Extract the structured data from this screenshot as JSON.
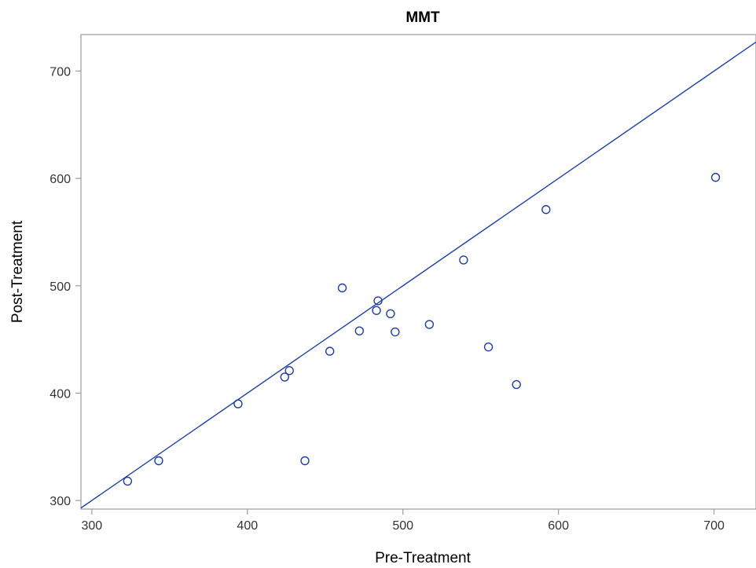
{
  "chart_data": {
    "type": "scatter",
    "title": "MMT",
    "xlabel": "Pre-Treatment",
    "ylabel": "Post-Treatment",
    "xlim": [
      293,
      727
    ],
    "ylim": [
      292,
      734
    ],
    "xticks": [
      300,
      400,
      500,
      600,
      700
    ],
    "yticks": [
      300,
      400,
      500,
      600,
      700
    ],
    "grid": false,
    "points": [
      {
        "x": 323,
        "y": 318
      },
      {
        "x": 343,
        "y": 337
      },
      {
        "x": 394,
        "y": 390
      },
      {
        "x": 424,
        "y": 415
      },
      {
        "x": 427,
        "y": 421
      },
      {
        "x": 437,
        "y": 337
      },
      {
        "x": 453,
        "y": 439
      },
      {
        "x": 461,
        "y": 498
      },
      {
        "x": 472,
        "y": 458
      },
      {
        "x": 483,
        "y": 477
      },
      {
        "x": 484,
        "y": 486
      },
      {
        "x": 492,
        "y": 474
      },
      {
        "x": 495,
        "y": 457
      },
      {
        "x": 517,
        "y": 464
      },
      {
        "x": 539,
        "y": 524
      },
      {
        "x": 555,
        "y": 443
      },
      {
        "x": 573,
        "y": 408
      },
      {
        "x": 592,
        "y": 571
      },
      {
        "x": 701,
        "y": 601
      }
    ],
    "reference_line": {
      "type": "identity",
      "x0": 293,
      "y0": 293,
      "x1": 727,
      "y1": 727
    },
    "colors": {
      "marker": "#1f3f9f",
      "line": "#1f3f9f",
      "frame": "#9b9b9b"
    }
  }
}
